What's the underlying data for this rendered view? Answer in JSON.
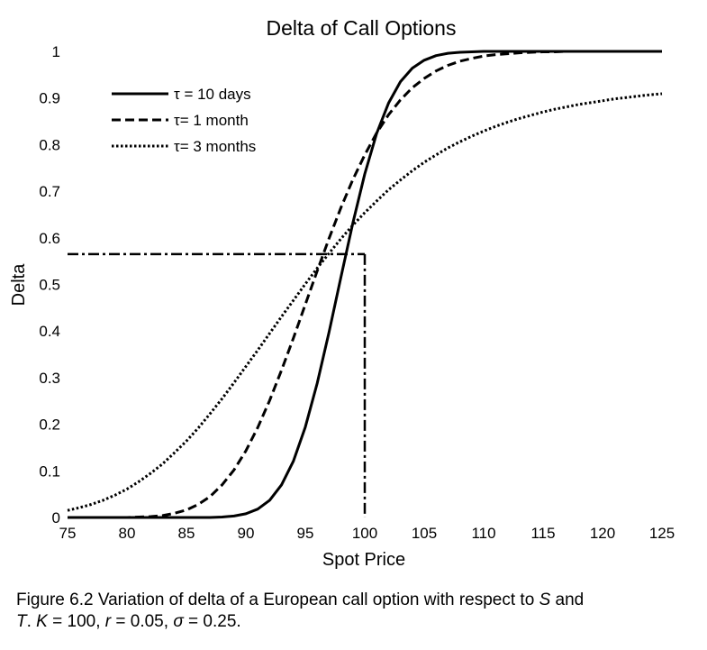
{
  "chart_data": {
    "type": "line",
    "title": "Delta of Call Options",
    "xlabel": "Spot Price",
    "ylabel": "Delta",
    "xlim": [
      75,
      125
    ],
    "ylim": [
      0,
      1
    ],
    "x_ticks": [
      "75",
      "80",
      "85",
      "90",
      "95",
      "100",
      "105",
      "110",
      "115",
      "120",
      "125"
    ],
    "y_ticks": [
      "0",
      "0.1",
      "0.2",
      "0.3",
      "0.4",
      "0.5",
      "0.6",
      "0.7",
      "0.8",
      "0.9",
      "1"
    ],
    "grid": false,
    "legend_position": "top-left",
    "x": [
      75,
      76,
      77,
      78,
      79,
      80,
      81,
      82,
      83,
      84,
      85,
      86,
      87,
      88,
      89,
      90,
      91,
      92,
      93,
      94,
      95,
      96,
      97,
      98,
      99,
      100,
      101,
      102,
      103,
      104,
      105,
      106,
      107,
      108,
      109,
      110,
      111,
      112,
      113,
      114,
      115,
      116,
      117,
      118,
      119,
      120,
      121,
      122,
      123,
      124,
      125
    ],
    "series": [
      {
        "name": "τ = 10 days",
        "style": "solid",
        "values": [
          0,
          0,
          0,
          0,
          0,
          0,
          0,
          0,
          0,
          0,
          0,
          0,
          0,
          0.001,
          0.003,
          0.008,
          0.018,
          0.037,
          0.07,
          0.121,
          0.194,
          0.288,
          0.398,
          0.516,
          0.632,
          0.737,
          0.824,
          0.889,
          0.935,
          0.964,
          0.981,
          0.991,
          0.996,
          0.998,
          0.999,
          1,
          1,
          1,
          1,
          1,
          1,
          1,
          1,
          1,
          1,
          1,
          1,
          1,
          1,
          1,
          1
        ]
      },
      {
        "name": "τ= 1 month",
        "style": "dashed",
        "values": [
          0,
          0,
          0,
          0,
          0,
          0,
          0.001,
          0.002,
          0.004,
          0.009,
          0.016,
          0.028,
          0.045,
          0.07,
          0.102,
          0.143,
          0.193,
          0.251,
          0.316,
          0.385,
          0.457,
          0.529,
          0.599,
          0.665,
          0.725,
          0.778,
          0.825,
          0.864,
          0.896,
          0.922,
          0.942,
          0.958,
          0.97,
          0.979,
          0.985,
          0.99,
          0.993,
          0.995,
          0.997,
          0.998,
          0.999,
          0.999,
          1,
          1,
          1,
          1,
          1,
          1,
          1,
          1,
          1
        ]
      },
      {
        "name": "τ= 3 months",
        "style": "dotted",
        "values": [
          0.015,
          0.021,
          0.028,
          0.037,
          0.048,
          0.061,
          0.077,
          0.095,
          0.115,
          0.139,
          0.164,
          0.192,
          0.223,
          0.255,
          0.289,
          0.324,
          0.359,
          0.395,
          0.431,
          0.466,
          0.501,
          0.535,
          0.567,
          0.598,
          0.627,
          0.654,
          0.679,
          0.703,
          0.724,
          0.744,
          0.762,
          0.778,
          0.793,
          0.806,
          0.818,
          0.829,
          0.839,
          0.848,
          0.856,
          0.863,
          0.87,
          0.876,
          0.881,
          0.886,
          0.89,
          0.894,
          0.898,
          0.901,
          0.904,
          0.907,
          0.909
        ]
      }
    ],
    "reference_point": {
      "x": 100,
      "y": 0.565
    }
  },
  "caption": {
    "part1": "Figure 6.2 Variation of delta of a European call option with respect to ",
    "S": "S",
    "part2": " and",
    "T": "T",
    "part3": ". ",
    "K": "K",
    "part4": " = 100, ",
    "r": "r",
    "part5": " = 0.05, ",
    "sigma": "σ",
    "part6": " = 0.25."
  }
}
